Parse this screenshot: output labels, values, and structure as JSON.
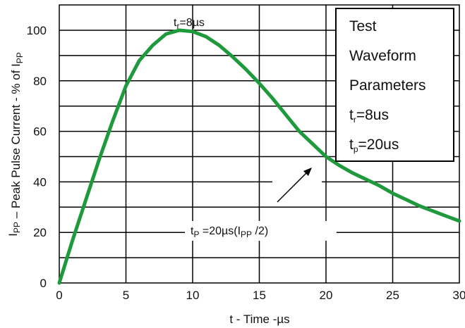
{
  "chart_data": {
    "type": "line",
    "xlabel": "t - Time -µs",
    "ylabel": "I_PP – Peak Pulse Current - % of I_PP",
    "xlim": [
      0,
      30
    ],
    "ylim": [
      0,
      100
    ],
    "x_ticks": [
      "0",
      "5",
      "10",
      "15",
      "20",
      "25",
      "30"
    ],
    "y_ticks": [
      "0",
      "20",
      "40",
      "60",
      "80",
      "100"
    ],
    "grid": true,
    "line_color": "#1e9a3c",
    "series": [
      {
        "x": [
          0,
          1,
          2,
          3,
          4,
          5,
          6,
          7,
          8,
          9,
          10,
          11,
          12,
          13,
          14,
          15,
          16,
          17,
          18,
          19,
          20,
          21,
          22,
          23,
          24,
          25,
          26,
          27,
          28,
          29,
          30
        ],
        "values": [
          0,
          17,
          33,
          49,
          64,
          78,
          88,
          94,
          98.5,
          100,
          99.5,
          97.5,
          94,
          89.5,
          84.5,
          79,
          73,
          66.5,
          60,
          55,
          50,
          46.5,
          43.5,
          41,
          38.5,
          35.5,
          33,
          30.5,
          28.5,
          26.5,
          24.5
        ]
      }
    ],
    "annotations": {
      "peak": {
        "t": "t",
        "sub": "r",
        "rest": "=8µs"
      },
      "half": {
        "a": "t",
        "a_sub": "P",
        "b": " =20µs(I",
        "b_sub": "PP",
        "c": " /2)"
      }
    },
    "legend_box": {
      "line1": "Test",
      "line2": "Waveform",
      "line3": "Parameters",
      "tr_main": "t",
      "tr_sub": "r",
      "tr_val": "=8us",
      "tp_main": "t",
      "tp_sub": "p",
      "tp_val": "=20us"
    }
  }
}
